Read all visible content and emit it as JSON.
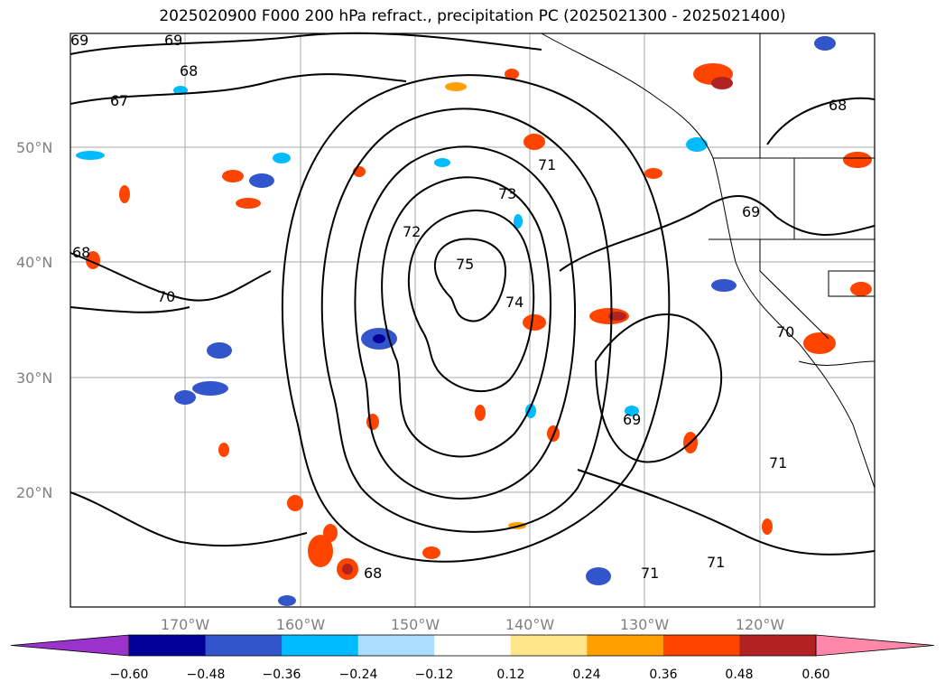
{
  "title": "2025020900 F000 200 hPa refract., precipitation PC (2025021300 - 2025021400)",
  "lat_labels": [
    "50°N",
    "40°N",
    "30°N",
    "20°N"
  ],
  "lon_labels": [
    "170°W",
    "160°W",
    "150°W",
    "140°W",
    "130°W",
    "120°W"
  ],
  "contour_labels": [
    "69",
    "69",
    "68",
    "67",
    "68",
    "71",
    "73",
    "72",
    "75",
    "74",
    "68",
    "70",
    "69",
    "69",
    "70",
    "71",
    "71",
    "71",
    "68"
  ],
  "colorbar": {
    "ticks": [
      "−0.60",
      "−0.48",
      "−0.36",
      "−0.24",
      "−0.12",
      "0.12",
      "0.24",
      "0.36",
      "0.48",
      "0.60"
    ],
    "colors": [
      "#9933cc",
      "#000099",
      "#3355cc",
      "#00bbff",
      "#aaddff",
      "#ffffff",
      "#ffe68a",
      "#ffa000",
      "#ff4400",
      "#b22222",
      "#ff88aa"
    ]
  },
  "colors": {
    "contour": "#000000",
    "grid": "#aaaaaa",
    "coast": "#000000"
  }
}
